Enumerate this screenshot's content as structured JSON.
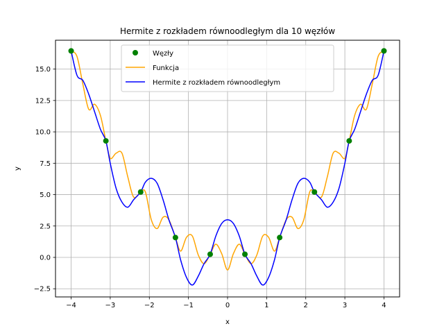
{
  "chart_data": {
    "type": "line",
    "title": "Hermite z rozkładem równoodległym dla 10 węzłów",
    "xlabel": "x",
    "ylabel": "y",
    "xlim": [
      -4.4,
      4.4
    ],
    "ylim": [
      -3.15,
      17.3
    ],
    "xticks": [
      -4,
      -3,
      -2,
      -1,
      0,
      1,
      2,
      3,
      4
    ],
    "yticks": [
      -2.5,
      0.0,
      2.5,
      5.0,
      7.5,
      10.0,
      12.5,
      15.0
    ],
    "grid": true,
    "legend_position": "top-center",
    "series": [
      {
        "name": "Węzły",
        "kind": "scatter",
        "color": "#008000",
        "x": [
          -4.0,
          -3.111,
          -2.222,
          -1.333,
          -0.444,
          0.444,
          1.333,
          2.222,
          3.111,
          4.0
        ],
        "y": [
          16.45,
          9.28,
          5.21,
          1.58,
          0.25,
          0.25,
          1.58,
          5.21,
          9.28,
          16.45
        ]
      },
      {
        "name": "Funkcja",
        "kind": "line",
        "color": "#ffa500",
        "x": [
          -4.0,
          -3.85,
          -3.7,
          -3.55,
          -3.4,
          -3.25,
          -3.111,
          -3.0,
          -2.85,
          -2.7,
          -2.55,
          -2.4,
          -2.222,
          -2.1,
          -1.95,
          -1.8,
          -1.65,
          -1.5,
          -1.333,
          -1.2,
          -1.05,
          -0.9,
          -0.75,
          -0.6,
          -0.444,
          -0.3,
          -0.15,
          0.0,
          0.15,
          0.3,
          0.444,
          0.6,
          0.75,
          0.9,
          1.05,
          1.2,
          1.333,
          1.5,
          1.65,
          1.8,
          1.95,
          2.1,
          2.222,
          2.4,
          2.55,
          2.7,
          2.85,
          3.0,
          3.111,
          3.25,
          3.4,
          3.55,
          3.7,
          3.85,
          4.0
        ],
        "y": [
          16.45,
          16.0,
          13.8,
          11.8,
          12.2,
          11.3,
          9.28,
          7.9,
          8.3,
          8.3,
          6.4,
          4.8,
          5.21,
          5.2,
          3.0,
          2.3,
          3.2,
          3.0,
          1.58,
          0.5,
          1.6,
          1.7,
          0.2,
          -0.5,
          0.25,
          1.05,
          0.3,
          -1.0,
          0.3,
          1.05,
          0.25,
          -0.5,
          0.2,
          1.7,
          1.6,
          0.5,
          1.58,
          3.0,
          3.2,
          2.3,
          3.0,
          5.2,
          5.21,
          4.8,
          6.4,
          8.3,
          8.3,
          7.9,
          9.28,
          11.3,
          12.2,
          11.8,
          13.8,
          16.0,
          16.45
        ]
      },
      {
        "name": "Hermite z rozkładem równoodległym",
        "kind": "line",
        "color": "#0000ff",
        "x": [
          -4.0,
          -3.85,
          -3.7,
          -3.55,
          -3.4,
          -3.25,
          -3.111,
          -3.0,
          -2.85,
          -2.7,
          -2.55,
          -2.4,
          -2.222,
          -2.1,
          -1.95,
          -1.8,
          -1.65,
          -1.5,
          -1.333,
          -1.2,
          -1.05,
          -0.9,
          -0.75,
          -0.6,
          -0.444,
          -0.3,
          -0.15,
          0.0,
          0.15,
          0.3,
          0.444,
          0.6,
          0.75,
          0.9,
          1.05,
          1.2,
          1.333,
          1.5,
          1.65,
          1.8,
          1.95,
          2.1,
          2.222,
          2.4,
          2.55,
          2.7,
          2.85,
          3.0,
          3.111,
          3.25,
          3.4,
          3.55,
          3.7,
          3.85,
          4.0
        ],
        "y": [
          16.45,
          14.5,
          14.1,
          13.0,
          11.6,
          10.2,
          9.28,
          7.5,
          5.5,
          4.4,
          4.0,
          4.6,
          5.21,
          6.0,
          6.3,
          5.9,
          4.6,
          3.0,
          1.58,
          -0.2,
          -1.6,
          -2.2,
          -1.5,
          -0.5,
          0.25,
          1.7,
          2.7,
          3.0,
          2.7,
          1.7,
          0.25,
          -0.5,
          -1.5,
          -2.2,
          -1.6,
          -0.2,
          1.58,
          3.0,
          4.6,
          5.9,
          6.3,
          6.0,
          5.21,
          4.6,
          4.0,
          4.4,
          5.5,
          7.5,
          9.28,
          10.2,
          11.6,
          13.0,
          14.1,
          14.5,
          16.45
        ]
      }
    ]
  }
}
